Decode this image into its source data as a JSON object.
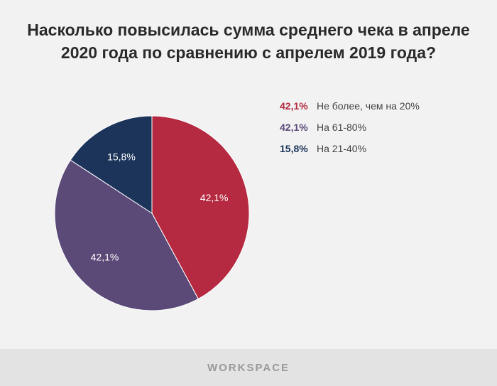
{
  "chart_data": {
    "type": "pie",
    "title_lines": [
      "Насколько повысилась  сумма среднего чека в апреле",
      "2020 года по сравнению с апрелем 2019 года?"
    ],
    "slices": [
      {
        "label": "Не более, чем на 20%",
        "value": 42.1,
        "display": "42,1%",
        "color": "#b52a40"
      },
      {
        "label": "На 61-80%",
        "value": 42.1,
        "display": "42,1%",
        "color": "#5b4a78"
      },
      {
        "label": "На 21-40%",
        "value": 15.8,
        "display": "15,8%",
        "color": "#1c345a"
      }
    ]
  },
  "footer": {
    "brand": "WORKSPACE"
  }
}
